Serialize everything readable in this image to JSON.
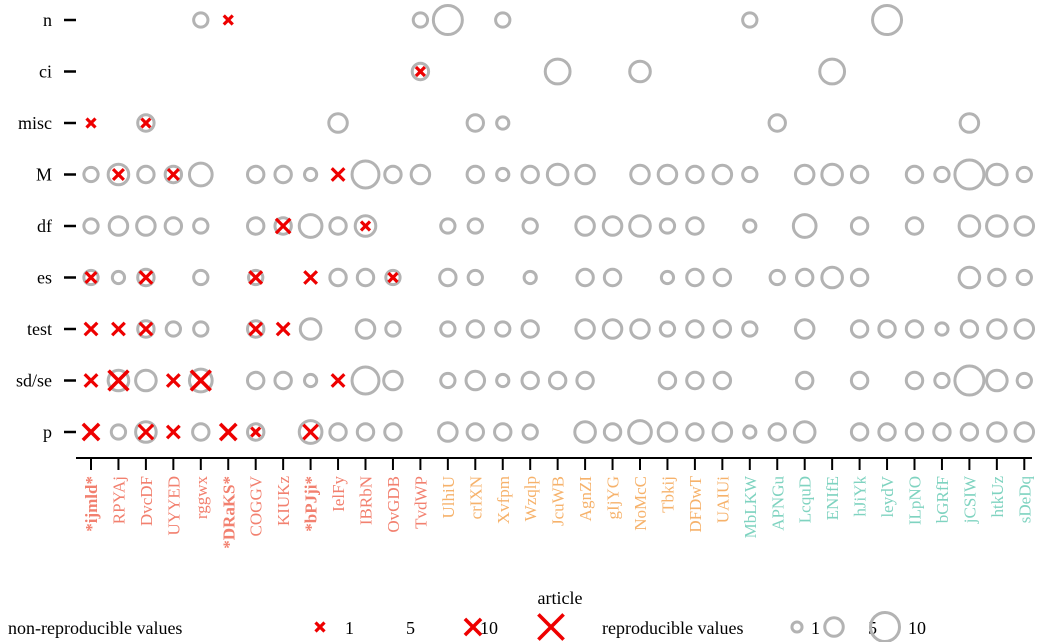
{
  "chart_data": {
    "type": "scatter",
    "xlabel": "article",
    "y_categories": [
      "n",
      "ci",
      "misc",
      "M",
      "df",
      "es",
      "test",
      "sd/se",
      "p"
    ],
    "articles": [
      {
        "id": "*ijmld*",
        "group": "red",
        "bold": true
      },
      {
        "id": "RPYAj",
        "group": "red",
        "bold": false
      },
      {
        "id": "DvcDF",
        "group": "red",
        "bold": false
      },
      {
        "id": "UYYED",
        "group": "red",
        "bold": false
      },
      {
        "id": "rggwx",
        "group": "red",
        "bold": false
      },
      {
        "id": "*DRaKS*",
        "group": "red",
        "bold": true
      },
      {
        "id": "COGGV",
        "group": "red",
        "bold": false
      },
      {
        "id": "KIUKz",
        "group": "red",
        "bold": false
      },
      {
        "id": "*bPJji*",
        "group": "red",
        "bold": true
      },
      {
        "id": "IelFy",
        "group": "red",
        "bold": false
      },
      {
        "id": "IBRbN",
        "group": "red",
        "bold": false
      },
      {
        "id": "OvGDB",
        "group": "red",
        "bold": false
      },
      {
        "id": "TvdWP",
        "group": "red",
        "bold": false
      },
      {
        "id": "UlhiU",
        "group": "orange",
        "bold": false
      },
      {
        "id": "crIXN",
        "group": "orange",
        "bold": false
      },
      {
        "id": "Xvfpm",
        "group": "orange",
        "bold": false
      },
      {
        "id": "Wzqlp",
        "group": "orange",
        "bold": false
      },
      {
        "id": "JcuWB",
        "group": "orange",
        "bold": false
      },
      {
        "id": "AgnZI",
        "group": "orange",
        "bold": false
      },
      {
        "id": "gIjYG",
        "group": "orange",
        "bold": false
      },
      {
        "id": "NoMcC",
        "group": "orange",
        "bold": false
      },
      {
        "id": "Tbkij",
        "group": "orange",
        "bold": false
      },
      {
        "id": "DFDwT",
        "group": "orange",
        "bold": false
      },
      {
        "id": "UAIUi",
        "group": "orange",
        "bold": false
      },
      {
        "id": "MbLKW",
        "group": "teal",
        "bold": false
      },
      {
        "id": "APNGu",
        "group": "teal",
        "bold": false
      },
      {
        "id": "LcquD",
        "group": "teal",
        "bold": false
      },
      {
        "id": "ENIfE",
        "group": "teal",
        "bold": false
      },
      {
        "id": "hJiYk",
        "group": "teal",
        "bold": false
      },
      {
        "id": "leydV",
        "group": "teal",
        "bold": false
      },
      {
        "id": "ILpNO",
        "group": "teal",
        "bold": false
      },
      {
        "id": "bGRfF",
        "group": "teal",
        "bold": false
      },
      {
        "id": "jCSIW",
        "group": "teal",
        "bold": false
      },
      {
        "id": "htkUz",
        "group": "teal",
        "bold": false
      },
      {
        "id": "sDeDq",
        "group": "teal",
        "bold": false
      }
    ],
    "reproducible": {
      "n": [
        [
          4,
          3
        ],
        [
          12,
          3
        ],
        [
          13,
          10
        ],
        [
          15,
          3
        ],
        [
          24,
          3
        ],
        [
          29,
          10
        ]
      ],
      "ci": [
        [
          12,
          4
        ],
        [
          17,
          8
        ],
        [
          20,
          6
        ],
        [
          27,
          8
        ]
      ],
      "misc": [
        [
          2,
          4
        ],
        [
          9,
          5
        ],
        [
          14,
          4
        ],
        [
          15,
          2
        ],
        [
          25,
          4
        ],
        [
          32,
          5
        ]
      ],
      "M": [
        [
          0,
          3
        ],
        [
          1,
          6
        ],
        [
          2,
          4
        ],
        [
          3,
          4
        ],
        [
          4,
          7
        ],
        [
          6,
          4
        ],
        [
          7,
          4
        ],
        [
          8,
          2
        ],
        [
          10,
          9
        ],
        [
          11,
          4
        ],
        [
          12,
          5
        ],
        [
          14,
          4
        ],
        [
          15,
          2
        ],
        [
          16,
          4
        ],
        [
          17,
          6
        ],
        [
          18,
          5
        ],
        [
          20,
          5
        ],
        [
          21,
          5
        ],
        [
          22,
          4
        ],
        [
          23,
          5
        ],
        [
          24,
          3
        ],
        [
          26,
          5
        ],
        [
          27,
          6
        ],
        [
          28,
          4
        ],
        [
          30,
          4
        ],
        [
          31,
          3
        ],
        [
          32,
          10
        ],
        [
          33,
          6
        ],
        [
          34,
          3
        ]
      ],
      "df": [
        [
          0,
          3
        ],
        [
          1,
          5
        ],
        [
          2,
          5
        ],
        [
          3,
          4
        ],
        [
          4,
          3
        ],
        [
          6,
          4
        ],
        [
          7,
          4
        ],
        [
          8,
          7
        ],
        [
          9,
          4
        ],
        [
          10,
          6
        ],
        [
          13,
          3
        ],
        [
          14,
          3
        ],
        [
          16,
          3
        ],
        [
          18,
          5
        ],
        [
          19,
          5
        ],
        [
          20,
          6
        ],
        [
          21,
          3
        ],
        [
          22,
          4
        ],
        [
          24,
          2
        ],
        [
          26,
          7
        ],
        [
          28,
          4
        ],
        [
          30,
          4
        ],
        [
          32,
          6
        ],
        [
          33,
          6
        ],
        [
          34,
          5
        ]
      ],
      "es": [
        [
          0,
          3
        ],
        [
          1,
          2
        ],
        [
          2,
          4
        ],
        [
          4,
          3
        ],
        [
          6,
          3
        ],
        [
          9,
          4
        ],
        [
          10,
          4
        ],
        [
          11,
          3
        ],
        [
          13,
          4
        ],
        [
          14,
          3
        ],
        [
          16,
          2
        ],
        [
          18,
          4
        ],
        [
          19,
          4
        ],
        [
          21,
          2
        ],
        [
          22,
          4
        ],
        [
          23,
          4
        ],
        [
          25,
          3
        ],
        [
          26,
          4
        ],
        [
          27,
          6
        ],
        [
          28,
          4
        ],
        [
          32,
          6
        ],
        [
          33,
          4
        ],
        [
          34,
          3
        ]
      ],
      "test": [
        [
          2,
          4
        ],
        [
          3,
          3
        ],
        [
          4,
          3
        ],
        [
          6,
          4
        ],
        [
          8,
          6
        ],
        [
          10,
          5
        ],
        [
          11,
          3
        ],
        [
          13,
          3
        ],
        [
          14,
          4
        ],
        [
          15,
          3
        ],
        [
          16,
          4
        ],
        [
          18,
          5
        ],
        [
          19,
          5
        ],
        [
          20,
          5
        ],
        [
          21,
          3
        ],
        [
          22,
          4
        ],
        [
          23,
          4
        ],
        [
          24,
          3
        ],
        [
          26,
          5
        ],
        [
          28,
          4
        ],
        [
          29,
          4
        ],
        [
          30,
          4
        ],
        [
          31,
          2
        ],
        [
          32,
          4
        ],
        [
          33,
          5
        ],
        [
          34,
          5
        ]
      ],
      "sd/se": [
        [
          1,
          6
        ],
        [
          2,
          6
        ],
        [
          4,
          7
        ],
        [
          6,
          4
        ],
        [
          7,
          4
        ],
        [
          8,
          2
        ],
        [
          10,
          9
        ],
        [
          11,
          5
        ],
        [
          13,
          3
        ],
        [
          14,
          5
        ],
        [
          15,
          2
        ],
        [
          16,
          4
        ],
        [
          17,
          4
        ],
        [
          18,
          4
        ],
        [
          21,
          4
        ],
        [
          22,
          4
        ],
        [
          23,
          4
        ],
        [
          26,
          4
        ],
        [
          28,
          4
        ],
        [
          30,
          4
        ],
        [
          31,
          3
        ],
        [
          32,
          10
        ],
        [
          33,
          6
        ],
        [
          34,
          3
        ]
      ],
      "p": [
        [
          1,
          3
        ],
        [
          2,
          6
        ],
        [
          4,
          4
        ],
        [
          6,
          4
        ],
        [
          8,
          7
        ],
        [
          9,
          4
        ],
        [
          10,
          4
        ],
        [
          11,
          4
        ],
        [
          13,
          5
        ],
        [
          14,
          4
        ],
        [
          15,
          4
        ],
        [
          16,
          3
        ],
        [
          18,
          6
        ],
        [
          19,
          4
        ],
        [
          20,
          7
        ],
        [
          21,
          5
        ],
        [
          22,
          4
        ],
        [
          23,
          5
        ],
        [
          24,
          2
        ],
        [
          25,
          4
        ],
        [
          26,
          6
        ],
        [
          28,
          4
        ],
        [
          29,
          4
        ],
        [
          30,
          4
        ],
        [
          31,
          4
        ],
        [
          32,
          4
        ],
        [
          33,
          5
        ],
        [
          34,
          5
        ]
      ]
    },
    "non_reproducible": {
      "n": [
        [
          5,
          1
        ]
      ],
      "ci": [
        [
          12,
          1
        ]
      ],
      "misc": [
        [
          0,
          1
        ],
        [
          2,
          1
        ]
      ],
      "M": [
        [
          1,
          2
        ],
        [
          3,
          2
        ],
        [
          9,
          3
        ]
      ],
      "df": [
        [
          7,
          4
        ],
        [
          10,
          1
        ]
      ],
      "es": [
        [
          0,
          2
        ],
        [
          2,
          3
        ],
        [
          6,
          3
        ],
        [
          8,
          3
        ],
        [
          11,
          1
        ]
      ],
      "test": [
        [
          0,
          3
        ],
        [
          1,
          3
        ],
        [
          2,
          3
        ],
        [
          6,
          3
        ],
        [
          7,
          3
        ]
      ],
      "sd/se": [
        [
          0,
          3
        ],
        [
          1,
          7
        ],
        [
          3,
          3
        ],
        [
          4,
          7
        ],
        [
          9,
          3
        ]
      ],
      "p": [
        [
          0,
          5
        ],
        [
          2,
          4
        ],
        [
          3,
          3
        ],
        [
          5,
          5
        ],
        [
          6,
          1
        ],
        [
          8,
          4
        ]
      ]
    },
    "legend": {
      "non_reproducible_label": "non-reproducible values",
      "reproducible_label": "reproducible values",
      "sizes": [
        1,
        5,
        10
      ],
      "size_labels": [
        "1",
        "5",
        "10"
      ]
    },
    "colors": {
      "red": "#f2806f",
      "orange": "#f6b26b",
      "teal": "#7fd3c0",
      "cross": "#ee0000",
      "circle": "#b3b3b3",
      "axis": "#000000"
    }
  }
}
